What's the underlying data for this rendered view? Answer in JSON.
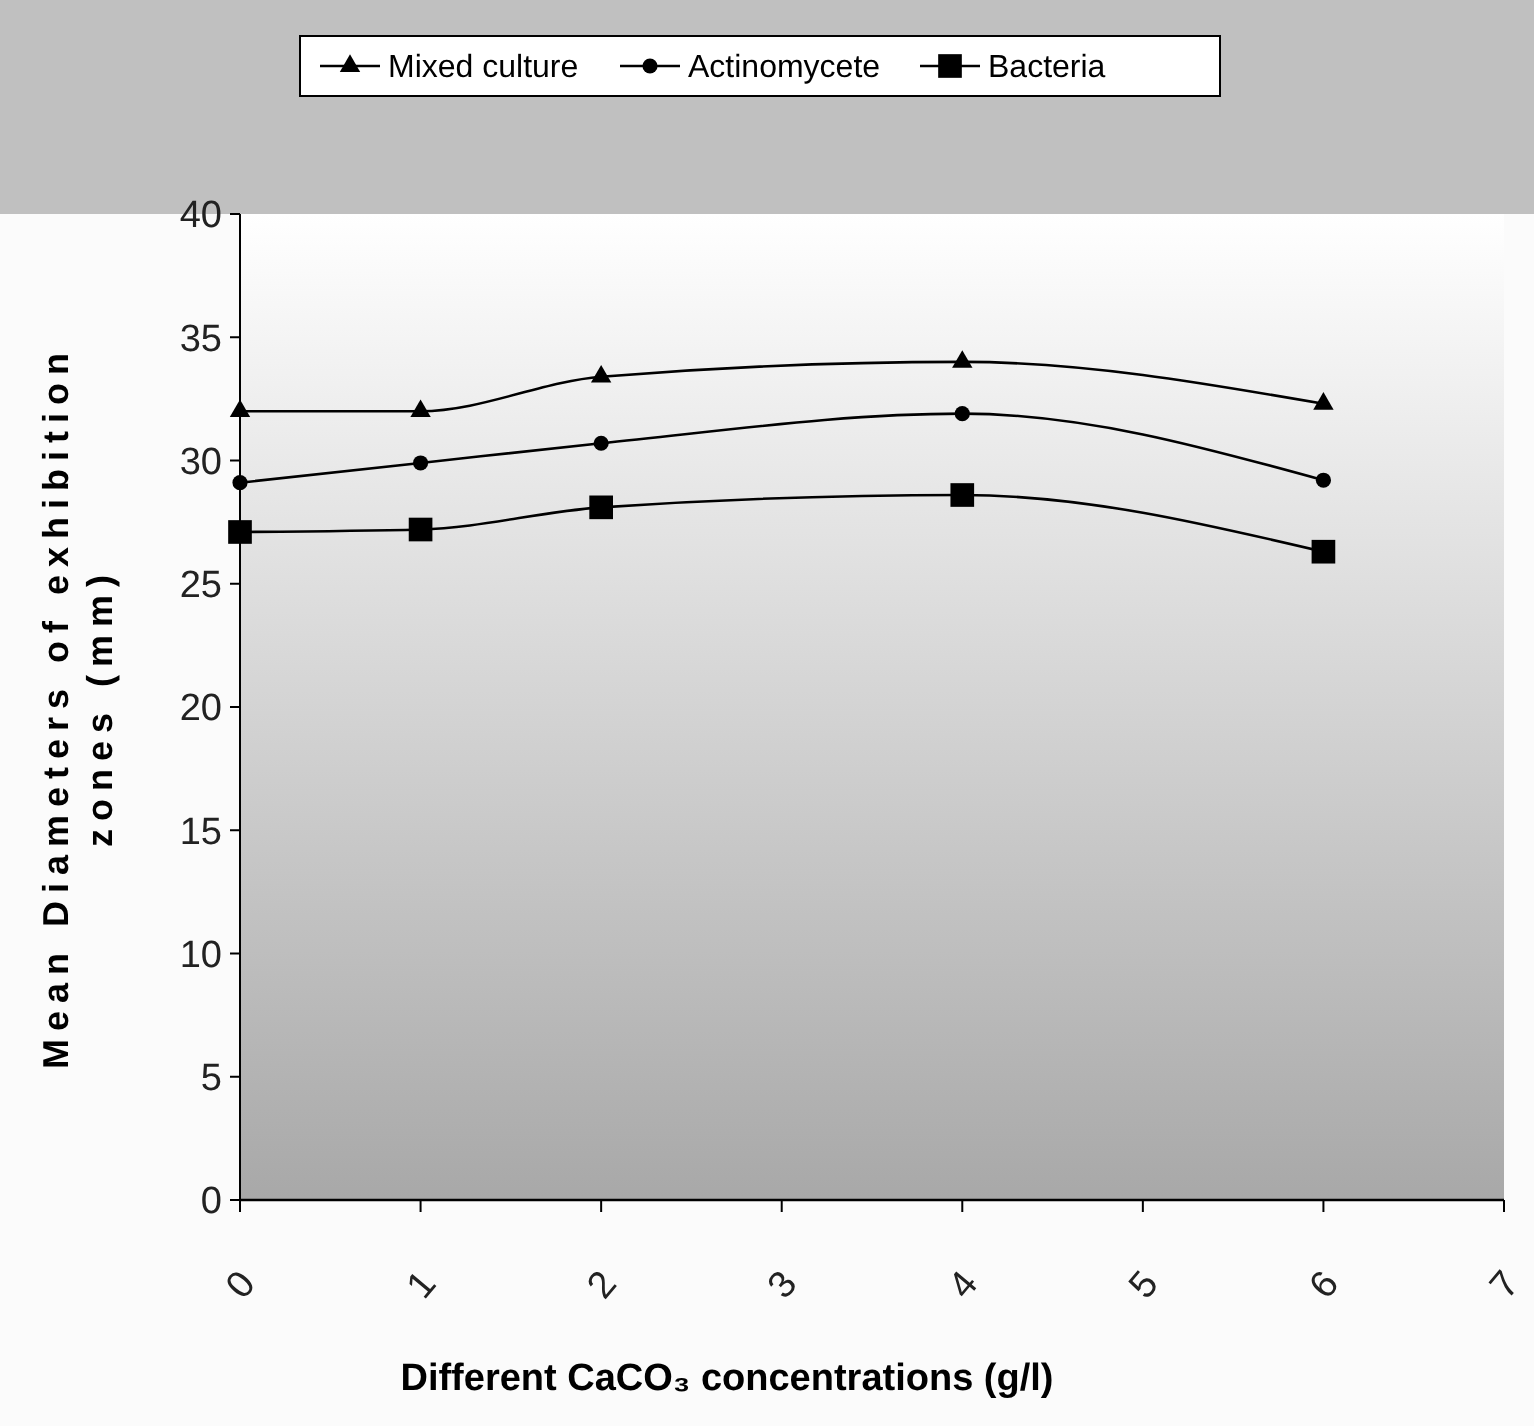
{
  "chart_data": {
    "type": "line",
    "xlabel": "Different CaCO₃ concentrations (g/l)",
    "ylabel": "Mean Diameters of exhibition zones (mm)",
    "x": [
      0,
      1,
      2,
      4,
      6
    ],
    "xlim": [
      0,
      7
    ],
    "xticks": [
      0,
      1,
      2,
      3,
      4,
      5,
      6,
      7
    ],
    "ylim": [
      0,
      40
    ],
    "yticks": [
      0,
      5,
      10,
      15,
      20,
      25,
      30,
      35,
      40
    ],
    "grid": false,
    "legend": "top",
    "line_style": "solid",
    "series": [
      {
        "name": "Mixed culture",
        "color": "#000000",
        "marker": "triangle",
        "values": [
          32,
          32,
          33.4,
          34,
          32.3
        ]
      },
      {
        "name": "Actinomycete",
        "color": "#000000",
        "marker": "circle",
        "values": [
          29.1,
          29.9,
          30.7,
          31.9,
          29.2
        ]
      },
      {
        "name": "Bacteria",
        "color": "#000000",
        "marker": "square",
        "values": [
          27.1,
          27.2,
          28.1,
          28.6,
          26.3
        ]
      }
    ]
  }
}
